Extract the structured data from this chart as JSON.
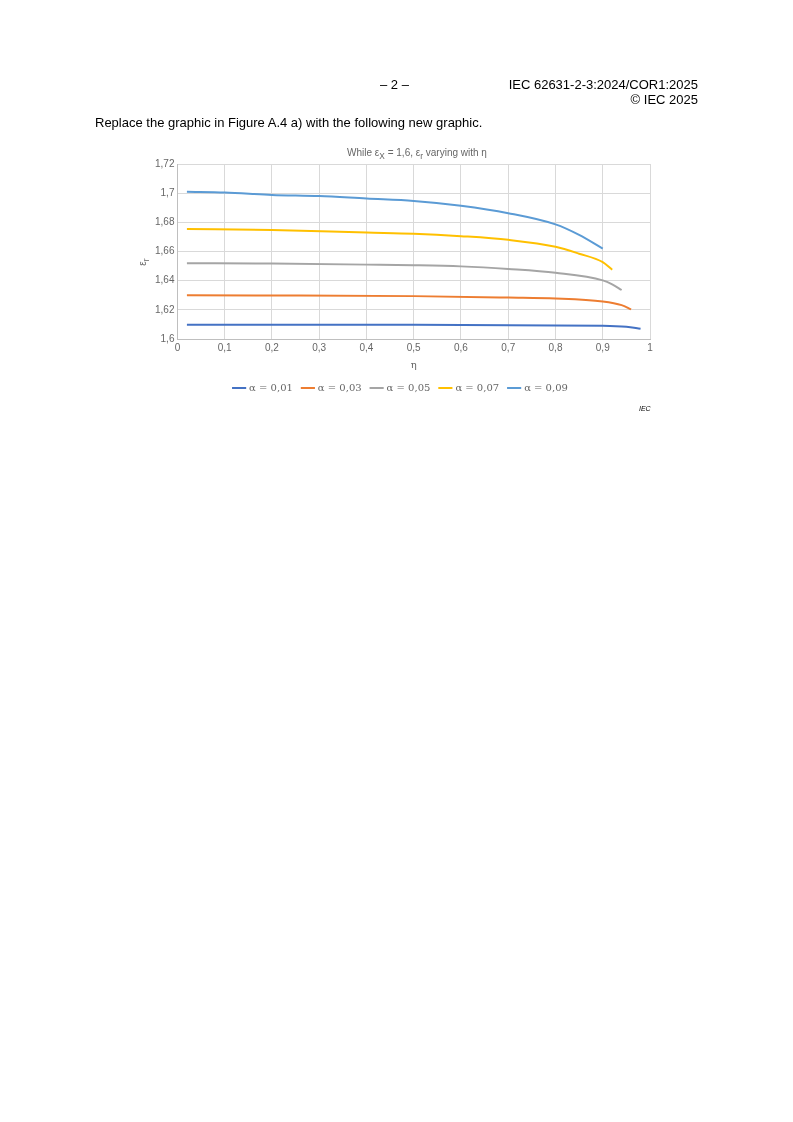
{
  "chart_data": {
    "type": "line",
    "title": "While ε$_{X}$ = 1,6, ε$_{r}$ varying with η",
    "xlabel": "η",
    "ylabel": "ε$_{r}$",
    "annotations": [
      "– 2 –",
      "IEC 62631-2-3:2024/COR1:2025",
      "© IEC 2025",
      "Replace the graphic in Figure A.4 a) with the following new graphic.",
      "IEC"
    ],
    "xlim": [
      0,
      1
    ],
    "xticks": [
      0,
      {
        "value": 0.1,
        "label": "0,1"
      },
      {
        "value": 0.2,
        "label": "0,2"
      },
      {
        "value": 0.3,
        "label": "0,3"
      },
      {
        "value": 0.4,
        "label": "0,4"
      },
      {
        "value": 0.5,
        "label": "0,5"
      },
      {
        "value": 0.6,
        "label": "0,6"
      },
      {
        "value": 0.7,
        "label": "0,7"
      },
      {
        "value": 0.8,
        "label": "0,8"
      },
      {
        "value": 0.9,
        "label": "0,9"
      },
      1
    ],
    "ylim": [
      1.6,
      1.72
    ],
    "yticks": [
      {
        "value": 1.6,
        "label": "1,6"
      },
      {
        "value": 1.62,
        "label": "1,62"
      },
      {
        "value": 1.64,
        "label": "1,64"
      },
      {
        "value": 1.66,
        "label": "1,66"
      },
      {
        "value": 1.68,
        "label": "1,68"
      },
      {
        "value": 1.7,
        "label": "1,7"
      },
      {
        "value": 1.72,
        "label": "1,72"
      }
    ],
    "grid": true,
    "legend": "bottom",
    "marker": "none",
    "line_style": "solid",
    "series": [
      {
        "name": "α = 0,01",
        "color": "#4472c4",
        "x": [
          0.02,
          0.5,
          0.9,
          0.95,
          0.98
        ],
        "values": [
          1.6097,
          1.6097,
          1.6091,
          1.6084,
          1.607
        ]
      },
      {
        "name": "α = 0,03",
        "color": "#ed7d31",
        "x": [
          0.02,
          0.5,
          0.7,
          0.8,
          0.9,
          0.94,
          0.96
        ],
        "values": [
          1.63,
          1.6294,
          1.6284,
          1.6278,
          1.6257,
          1.6232,
          1.6203
        ]
      },
      {
        "name": "α = 0,05",
        "color": "#a5a5a5",
        "x": [
          0.02,
          0.2,
          0.4,
          0.5,
          0.6,
          0.7,
          0.8,
          0.9,
          0.92,
          0.94
        ],
        "values": [
          1.652,
          1.6517,
          1.651,
          1.6506,
          1.6498,
          1.648,
          1.6454,
          1.6402,
          1.6375,
          1.6336
        ]
      },
      {
        "name": "α = 0,07",
        "color": "#ffc000",
        "x": [
          0.02,
          0.2,
          0.4,
          0.5,
          0.6,
          0.7,
          0.8,
          0.85,
          0.9,
          0.92
        ],
        "values": [
          1.6755,
          1.6748,
          1.673,
          1.6722,
          1.6705,
          1.668,
          1.6633,
          1.6585,
          1.6527,
          1.6475
        ]
      },
      {
        "name": "α = 0,09",
        "color": "#5b9bd5",
        "x": [
          0.02,
          0.1,
          0.2,
          0.3,
          0.4,
          0.5,
          0.6,
          0.7,
          0.8,
          0.85,
          0.9
        ],
        "values": [
          1.701,
          1.7005,
          1.6988,
          1.698,
          1.6963,
          1.6947,
          1.6914,
          1.6863,
          1.6786,
          1.6714,
          1.662
        ]
      }
    ]
  }
}
